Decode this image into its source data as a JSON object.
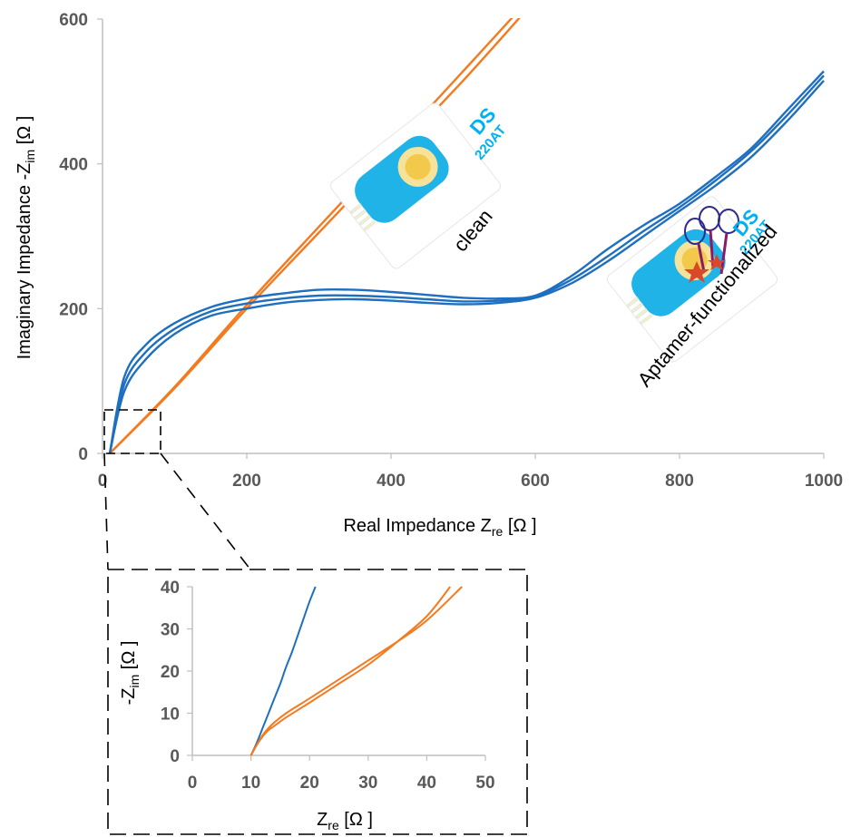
{
  "chart_data": [
    {
      "type": "line",
      "xlabel_main": "Real Impedance Z",
      "xlabel_sub": "re",
      "xlabel_unit": " [Ω ]",
      "ylabel_main": "Imaginary Impedance -Z",
      "ylabel_sub": "im",
      "ylabel_unit": " [Ω ]",
      "xlim": [
        0,
        1000
      ],
      "ylim": [
        0,
        600
      ],
      "xticks": [
        "0",
        "200",
        "400",
        "600",
        "800",
        "1000"
      ],
      "yticks": [
        "0",
        "200",
        "400",
        "600"
      ],
      "series": [
        {
          "color": "#f47a20",
          "x": [
            10,
            100,
            200,
            300,
            400,
            500,
            590
          ],
          "y": [
            0,
            90,
            200,
            305,
            410,
            515,
            615
          ]
        },
        {
          "color": "#f47a20",
          "x": [
            10,
            100,
            200,
            300,
            400,
            500,
            580
          ],
          "y": [
            0,
            92,
            205,
            313,
            420,
            528,
            615
          ]
        },
        {
          "color": "#1f6fc0",
          "x": [
            10,
            30,
            60,
            100,
            150,
            200,
            250,
            300,
            350,
            400,
            450,
            500,
            550,
            600,
            650,
            700,
            750,
            800,
            850,
            900,
            950,
            1000
          ],
          "y": [
            0,
            85,
            130,
            165,
            190,
            200,
            208,
            212,
            213,
            211,
            208,
            206,
            208,
            215,
            235,
            265,
            300,
            335,
            370,
            410,
            460,
            515
          ]
        },
        {
          "color": "#1f6fc0",
          "x": [
            10,
            30,
            60,
            100,
            150,
            200,
            250,
            300,
            350,
            400,
            450,
            500,
            550,
            600,
            650,
            700,
            750,
            800,
            850,
            900,
            950,
            1000
          ],
          "y": [
            0,
            95,
            140,
            172,
            196,
            207,
            214,
            218,
            218,
            216,
            213,
            210,
            211,
            217,
            240,
            272,
            307,
            340,
            377,
            418,
            468,
            522
          ]
        },
        {
          "color": "#1f6fc0",
          "x": [
            10,
            30,
            60,
            100,
            150,
            200,
            250,
            300,
            350,
            400,
            450,
            500,
            550,
            600,
            650,
            700,
            750,
            800,
            850,
            900,
            950,
            1000
          ],
          "y": [
            0,
            105,
            150,
            180,
            202,
            214,
            221,
            226,
            226,
            223,
            219,
            215,
            214,
            218,
            245,
            282,
            315,
            345,
            382,
            422,
            475,
            528
          ]
        }
      ],
      "annotations": [
        "clean",
        "Aptamer-functionalized"
      ],
      "sensor_labels": {
        "brand": "DS",
        "model": "220AT"
      }
    },
    {
      "type": "line",
      "xlabel_main": "Z",
      "xlabel_sub": "re",
      "xlabel_unit": " [Ω ]",
      "ylabel_main": "-Z",
      "ylabel_sub": "im",
      "ylabel_unit": " [Ω ]",
      "xlim": [
        0,
        50
      ],
      "ylim": [
        0,
        40
      ],
      "xticks": [
        "0",
        "10",
        "20",
        "30",
        "40",
        "50"
      ],
      "yticks": [
        "0",
        "10",
        "20",
        "30",
        "40"
      ],
      "series": [
        {
          "color": "#1f6fc0",
          "x": [
            10,
            11,
            12,
            13,
            14,
            15,
            16,
            17,
            18,
            19,
            20,
            21
          ],
          "y": [
            0,
            3,
            6.5,
            10,
            13.5,
            17,
            21,
            24.5,
            28.5,
            32.5,
            36.5,
            40
          ]
        },
        {
          "color": "#f47a20",
          "x": [
            10,
            11,
            12,
            13,
            14,
            16,
            20,
            25,
            30,
            35,
            40,
            44
          ],
          "y": [
            0,
            2.5,
            4.5,
            6,
            7,
            9,
            12.5,
            17,
            21.5,
            27,
            33,
            40
          ]
        },
        {
          "color": "#f47a20",
          "x": [
            10,
            11,
            12,
            13,
            14,
            16,
            20,
            25,
            30,
            35,
            40,
            46
          ],
          "y": [
            0,
            2.5,
            4.8,
            6.5,
            7.8,
            10,
            13.5,
            18,
            22.5,
            27,
            32,
            40
          ]
        }
      ]
    }
  ]
}
